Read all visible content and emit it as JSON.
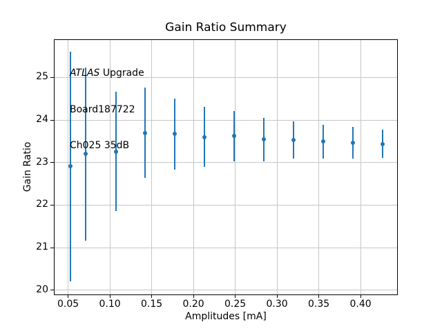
{
  "chart_data": {
    "type": "scatter",
    "title": "Gain Ratio Summary",
    "xlabel": "Amplitudes [mA]",
    "ylabel": "Gain Ratio",
    "annotation": {
      "line1_italic": "ATLAS",
      "line1_rest": " Upgrade",
      "line2": "Board187722",
      "line3": "Ch025 35dB"
    },
    "series": [
      {
        "name": "gain-ratio-vs-amplitude",
        "color": "#1f77b4",
        "marker": "circle",
        "x": [
          0.053,
          0.071,
          0.107,
          0.142,
          0.178,
          0.213,
          0.249,
          0.284,
          0.32,
          0.355,
          0.391,
          0.426
        ],
        "y": [
          22.91,
          23.2,
          23.26,
          23.7,
          23.67,
          23.6,
          23.62,
          23.54,
          23.53,
          23.49,
          23.46,
          23.44
        ],
        "yerr": [
          2.7,
          2.03,
          1.4,
          1.06,
          0.83,
          0.7,
          0.59,
          0.51,
          0.43,
          0.4,
          0.37,
          0.33
        ]
      }
    ],
    "xticks": [
      "0.05",
      "0.10",
      "0.15",
      "0.20",
      "0.25",
      "0.30",
      "0.35",
      "0.40"
    ],
    "yticks": [
      "20",
      "21",
      "22",
      "23",
      "24",
      "25"
    ],
    "xlim": [
      0.0338,
      0.4437
    ],
    "ylim": [
      19.9,
      25.88
    ],
    "grid": true,
    "grid_color": "#c6c6c6",
    "legend": "none"
  }
}
